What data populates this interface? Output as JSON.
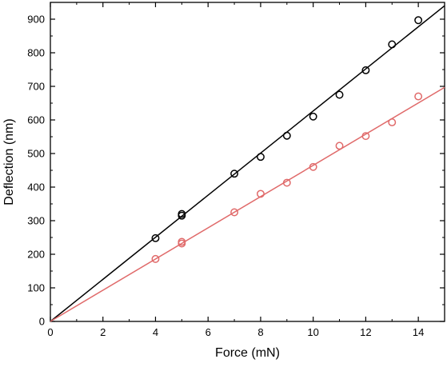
{
  "chart_data": {
    "type": "scatter",
    "title": "",
    "xlabel": "Force (mN)",
    "ylabel": "Deflection (nm)",
    "xlim": [
      0,
      15
    ],
    "ylim": [
      0,
      950
    ],
    "xticks": [
      0,
      2,
      4,
      6,
      8,
      10,
      12,
      14
    ],
    "yticks": [
      0,
      100,
      200,
      300,
      400,
      500,
      600,
      700,
      800,
      900
    ],
    "grid": false,
    "legend": "none",
    "series": [
      {
        "color": "#000000",
        "marker": "open-circle",
        "points": [
          {
            "x": 4,
            "y": 248
          },
          {
            "x": 5,
            "y": 320
          },
          {
            "x": 5,
            "y": 315
          },
          {
            "x": 7,
            "y": 440
          },
          {
            "x": 8,
            "y": 490
          },
          {
            "x": 9,
            "y": 553
          },
          {
            "x": 10,
            "y": 610
          },
          {
            "x": 11,
            "y": 675
          },
          {
            "x": 12,
            "y": 748
          },
          {
            "x": 13,
            "y": 825
          },
          {
            "x": 14,
            "y": 897
          }
        ],
        "fit_line": {
          "x": [
            0,
            15
          ],
          "y": [
            0,
            940
          ]
        }
      },
      {
        "color": "#e06a6a",
        "marker": "open-circle",
        "points": [
          {
            "x": 4,
            "y": 186
          },
          {
            "x": 5,
            "y": 237
          },
          {
            "x": 5,
            "y": 232
          },
          {
            "x": 7,
            "y": 325
          },
          {
            "x": 8,
            "y": 380
          },
          {
            "x": 9,
            "y": 413
          },
          {
            "x": 10,
            "y": 460
          },
          {
            "x": 11,
            "y": 523
          },
          {
            "x": 12,
            "y": 552
          },
          {
            "x": 13,
            "y": 593
          },
          {
            "x": 14,
            "y": 670
          }
        ],
        "fit_line": {
          "x": [
            0,
            15
          ],
          "y": [
            0,
            697
          ]
        }
      }
    ]
  }
}
